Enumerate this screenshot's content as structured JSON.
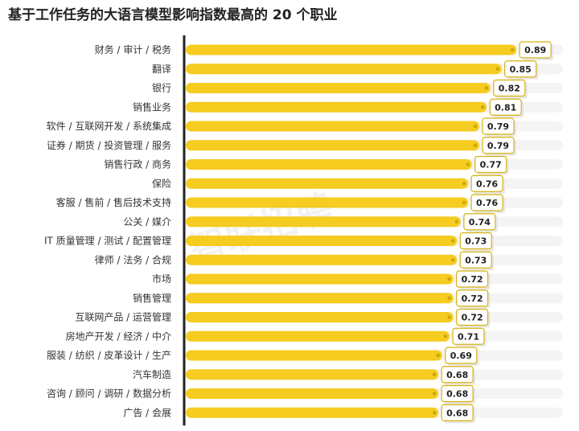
{
  "chart_data": {
    "type": "bar",
    "orientation": "horizontal",
    "title": "基于工作任务的大语言模型影响指数最高的 20 个职业",
    "categories": [
      "财务 / 审计 / 税务",
      "翻译",
      "银行",
      "销售业务",
      "软件 / 互联网开发 / 系统集成",
      "证券 / 期货 / 投资管理 / 服务",
      "销售行政 / 商务",
      "保险",
      "客服 / 售前 / 售后技术支持",
      "公关 / 媒介",
      "IT 质量管理 / 测试 / 配置管理",
      "律师 / 法务 / 合规",
      "市场",
      "销售管理",
      "互联网产品 / 运营管理",
      "房地产开发 / 经济 / 中介",
      "服装 / 纺织 / 皮革设计 / 生产",
      "汽车制造",
      "咨询 / 顾问 / 调研 / 数据分析",
      "广告 / 会展"
    ],
    "values": [
      0.89,
      0.85,
      0.82,
      0.81,
      0.79,
      0.79,
      0.77,
      0.76,
      0.76,
      0.74,
      0.73,
      0.73,
      0.72,
      0.72,
      0.72,
      0.71,
      0.69,
      0.68,
      0.68,
      0.68
    ],
    "value_labels": [
      "0.89",
      "0.85",
      "0.82",
      "0.81",
      "0.79",
      "0.79",
      "0.77",
      "0.76",
      "0.76",
      "0.74",
      "0.73",
      "0.73",
      "0.72",
      "0.72",
      "0.72",
      "0.71",
      "0.69",
      "0.68",
      "0.68",
      "0.68"
    ],
    "xlim": [
      0,
      1
    ],
    "grid": false,
    "legend": "none",
    "colors": {
      "bar": "#f5cc1f",
      "bar_end": "#c9a40a",
      "track": "#f4f4f4",
      "axis": "#222222",
      "label_border": "#d6b20f",
      "label_shadow": "#e8e8e8"
    }
  },
  "watermark": "智联招聘"
}
